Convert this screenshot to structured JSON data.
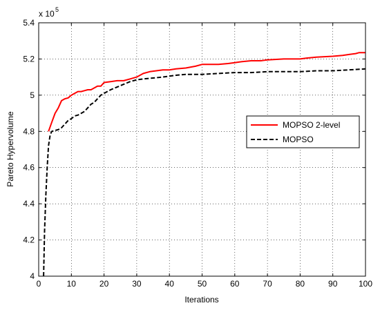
{
  "chart_data": {
    "type": "line",
    "xlabel": "Iterations",
    "ylabel": "Pareto Hypervolume",
    "y_multiplier_label": "x 10",
    "y_multiplier_exponent": "5",
    "xlim": [
      0,
      100
    ],
    "ylim": [
      4.0,
      5.4
    ],
    "xticks": [
      0,
      10,
      20,
      30,
      40,
      50,
      60,
      70,
      80,
      90,
      100
    ],
    "xtick_labels": [
      "0",
      "10",
      "20",
      "30",
      "40",
      "50",
      "60",
      "70",
      "80",
      "90",
      "100"
    ],
    "yticks": [
      4.0,
      4.2,
      4.4,
      4.6,
      4.8,
      5.0,
      5.2,
      5.4
    ],
    "ytick_labels": [
      "4",
      "4.2",
      "4.4",
      "4.6",
      "4.8",
      "5",
      "5.2",
      "5.4"
    ],
    "grid": true,
    "legend_position": "right",
    "series": [
      {
        "name": "MOPSO 2-level",
        "color": "#ff0000",
        "style": "solid",
        "x": [
          3,
          4,
          5,
          6,
          7,
          8,
          9,
          10,
          11,
          12,
          13,
          14,
          15,
          16,
          17,
          18,
          19,
          20,
          22,
          24,
          26,
          28,
          30,
          32,
          34,
          36,
          38,
          40,
          42,
          45,
          48,
          50,
          55,
          58,
          60,
          62,
          65,
          68,
          70,
          75,
          80,
          82,
          85,
          90,
          93,
          95,
          97,
          98,
          100
        ],
        "y": [
          4.8,
          4.85,
          4.9,
          4.93,
          4.97,
          4.98,
          4.985,
          5.0,
          5.01,
          5.02,
          5.02,
          5.025,
          5.03,
          5.03,
          5.04,
          5.05,
          5.05,
          5.07,
          5.075,
          5.08,
          5.08,
          5.09,
          5.1,
          5.12,
          5.13,
          5.135,
          5.14,
          5.14,
          5.145,
          5.15,
          5.16,
          5.17,
          5.17,
          5.175,
          5.18,
          5.185,
          5.19,
          5.19,
          5.195,
          5.2,
          5.2,
          5.205,
          5.21,
          5.215,
          5.22,
          5.225,
          5.23,
          5.235,
          5.235
        ]
      },
      {
        "name": "MOPSO",
        "color": "#000000",
        "style": "dashed",
        "x": [
          1.5,
          1.8,
          2.2,
          2.6,
          3,
          3.5,
          4,
          5,
          6,
          7,
          8,
          9,
          10,
          11,
          12,
          13,
          14,
          15,
          16,
          17,
          18,
          19,
          20,
          22,
          24,
          26,
          28,
          30,
          32,
          35,
          38,
          40,
          42,
          45,
          50,
          55,
          60,
          65,
          70,
          75,
          80,
          85,
          90,
          95,
          100
        ],
        "y": [
          4.0,
          4.25,
          4.45,
          4.6,
          4.72,
          4.78,
          4.8,
          4.805,
          4.81,
          4.82,
          4.84,
          4.86,
          4.87,
          4.885,
          4.89,
          4.9,
          4.91,
          4.93,
          4.95,
          4.96,
          4.98,
          5.0,
          5.01,
          5.03,
          5.045,
          5.06,
          5.075,
          5.085,
          5.09,
          5.095,
          5.1,
          5.105,
          5.11,
          5.115,
          5.115,
          5.12,
          5.125,
          5.125,
          5.13,
          5.13,
          5.13,
          5.135,
          5.135,
          5.14,
          5.145
        ]
      }
    ]
  }
}
